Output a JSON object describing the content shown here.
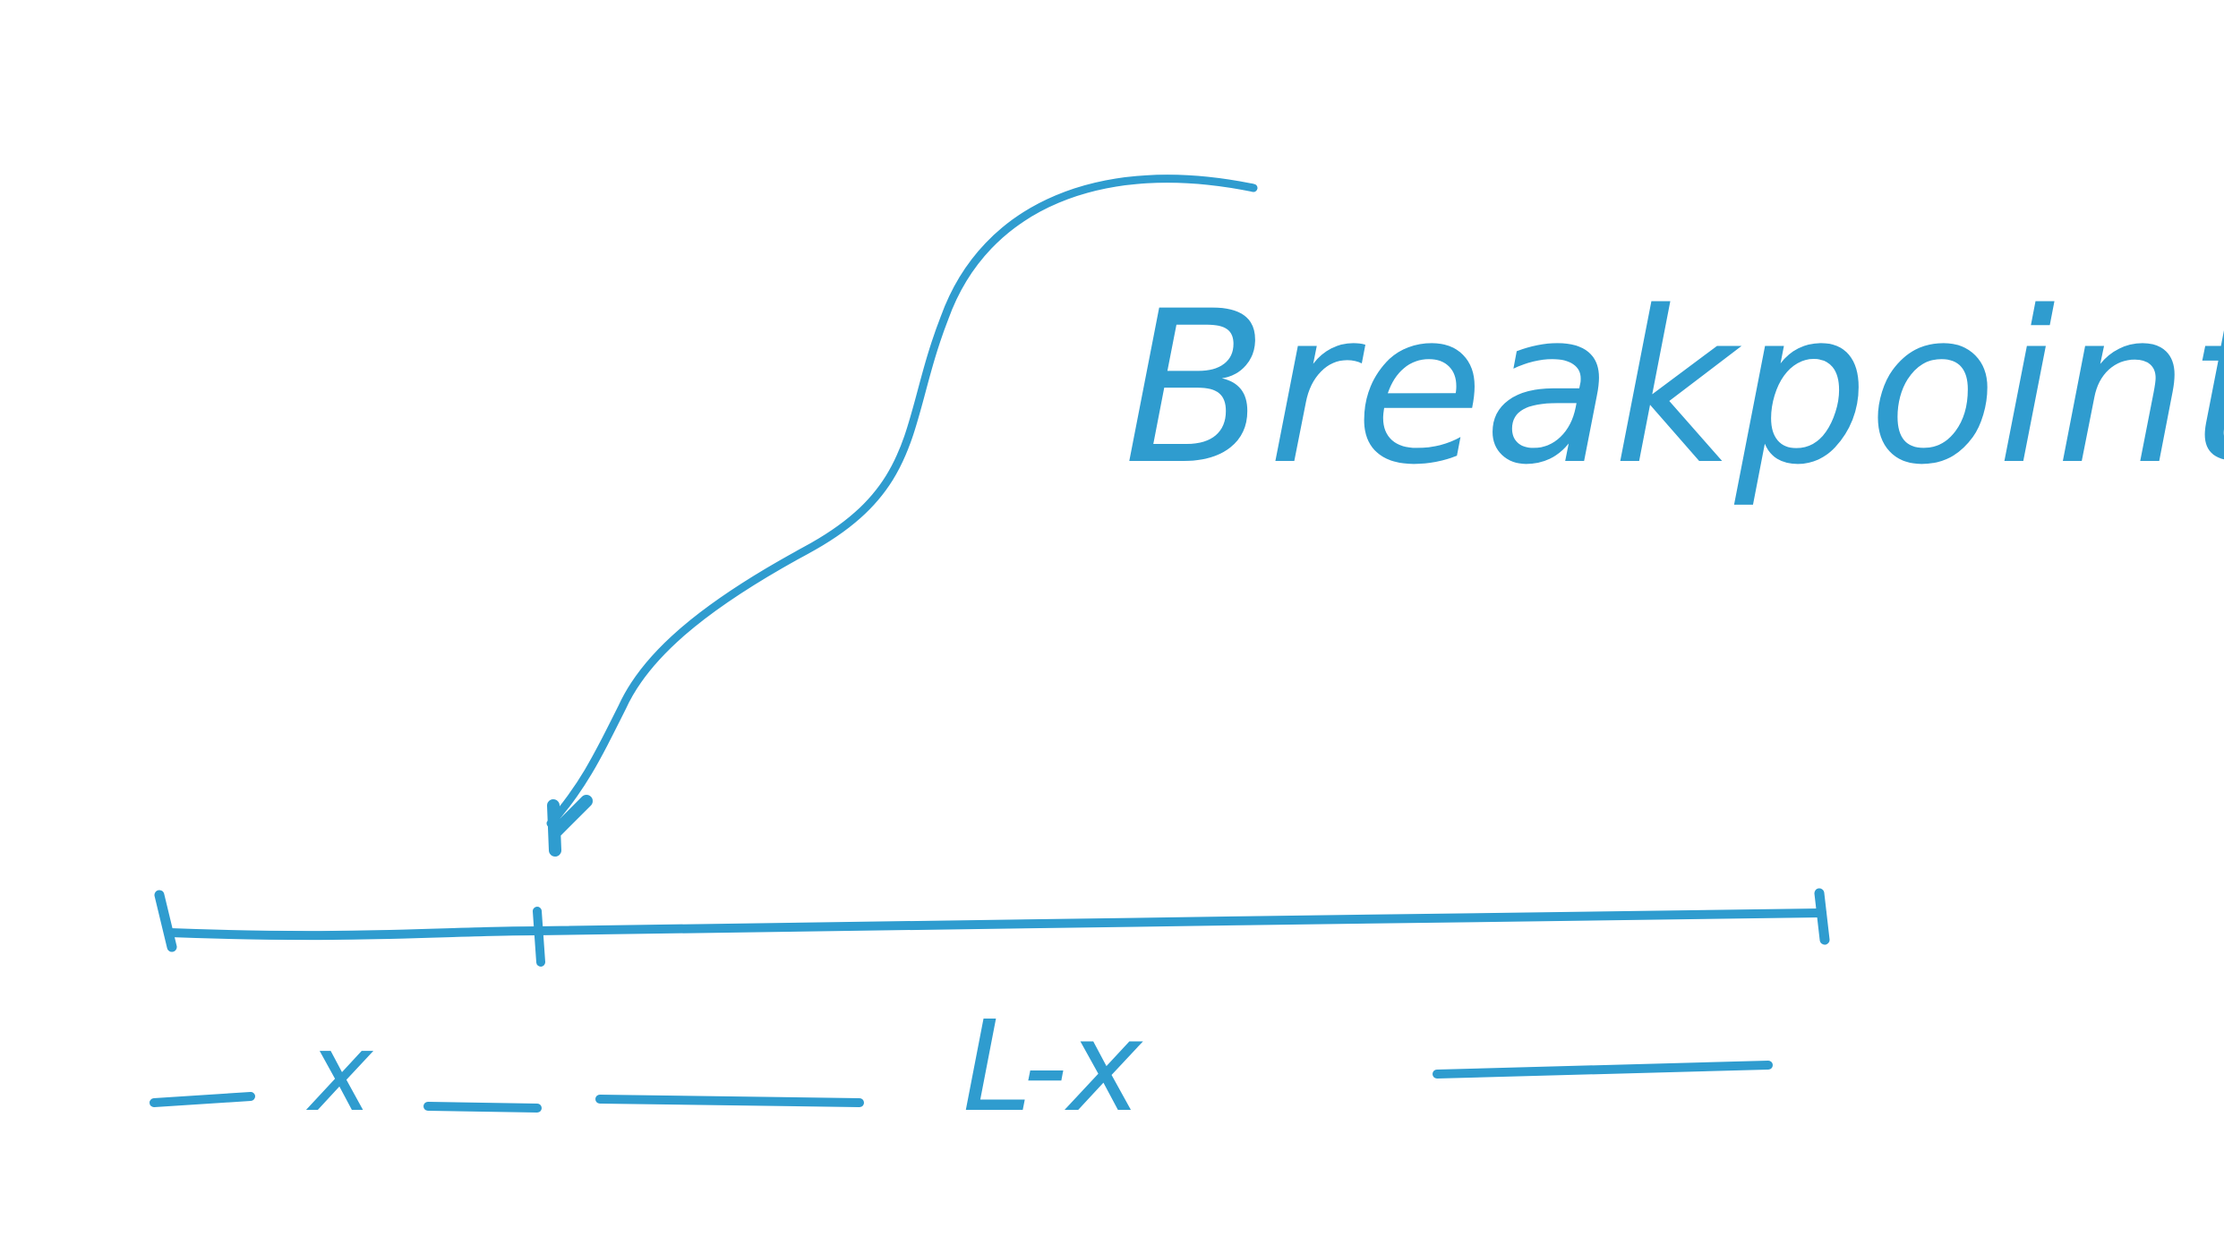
{
  "colors": {
    "ink": "#2f9ccf",
    "background": "#ffffff"
  },
  "diagram": {
    "callout_label": "Breakpoint",
    "left_segment_label": "x",
    "right_segment_label": "L-x"
  }
}
